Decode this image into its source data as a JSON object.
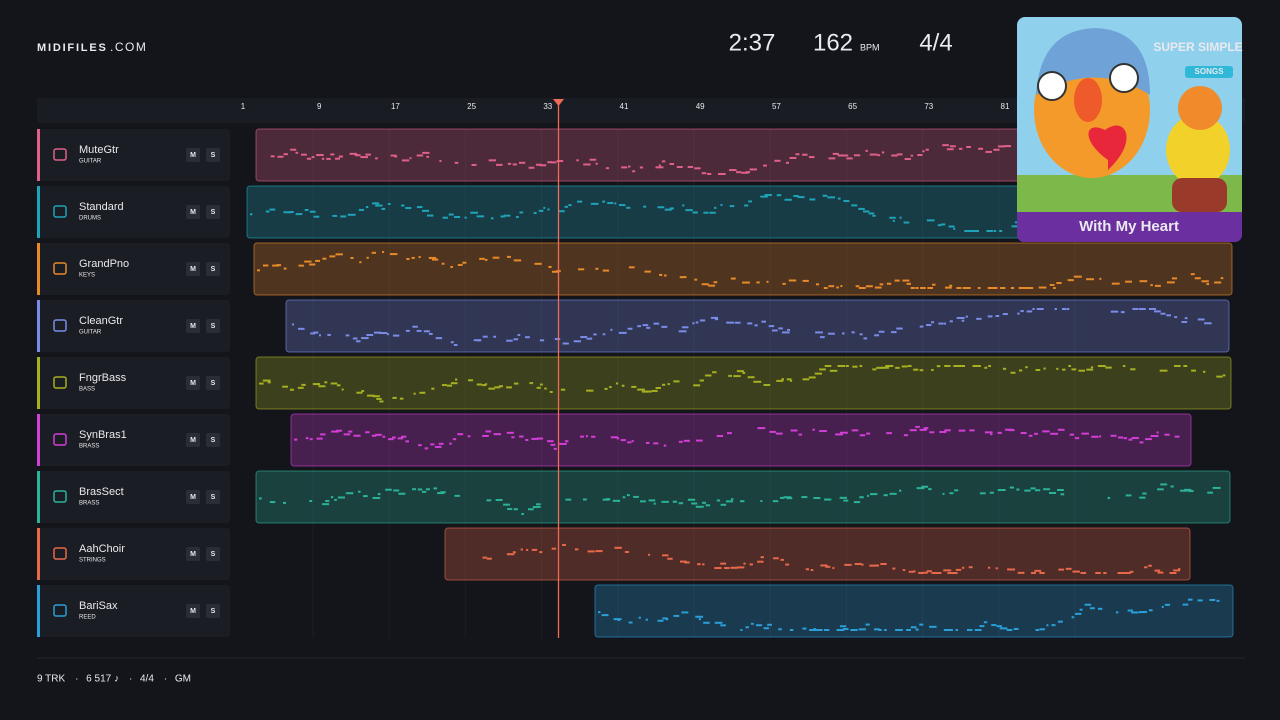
{
  "header": {
    "brand": "MIDIFILES",
    "domain": ".COM",
    "time": "2:37",
    "tempo": "162",
    "tempo_unit": "BPM",
    "meter": "4/4"
  },
  "ruler": [
    "1",
    "9",
    "17",
    "25",
    "33",
    "41",
    "49",
    "57",
    "65",
    "73",
    "81"
  ],
  "tracks": [
    {
      "name": "MuteGtr",
      "category": "GUITAR",
      "mute": "M",
      "solo": "S"
    },
    {
      "name": "Standard",
      "category": "DRUMS",
      "mute": "M",
      "solo": "S"
    },
    {
      "name": "GrandPno",
      "category": "KEYS",
      "mute": "M",
      "solo": "S"
    },
    {
      "name": "CleanGtr",
      "category": "GUITAR",
      "mute": "M",
      "solo": "S"
    },
    {
      "name": "FngrBass",
      "category": "BASS",
      "mute": "M",
      "solo": "S"
    },
    {
      "name": "SynBras1",
      "category": "BRASS",
      "mute": "M",
      "solo": "S"
    },
    {
      "name": "BrasSect",
      "category": "BRASS",
      "mute": "M",
      "solo": "S"
    },
    {
      "name": "AahChoir",
      "category": "STRINGS",
      "mute": "M",
      "solo": "S"
    },
    {
      "name": "BariSax",
      "category": "REED",
      "mute": "M",
      "solo": "S"
    }
  ],
  "album": {
    "title": "With My Heart",
    "logo": "SUPER SIMPLE",
    "logo_sub": "SONGS"
  },
  "footer": {
    "items": [
      "9 TRK",
      "6 517 ♪",
      "4/4",
      "GM"
    ],
    "separator": "·"
  }
}
